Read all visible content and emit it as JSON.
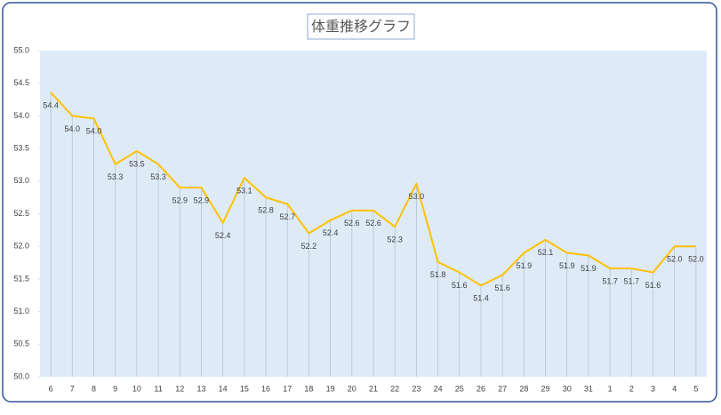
{
  "chart_data": {
    "type": "line",
    "title": "体重推移グラフ",
    "categories": [
      "6",
      "7",
      "8",
      "9",
      "10",
      "11",
      "12",
      "13",
      "14",
      "15",
      "16",
      "17",
      "18",
      "19",
      "20",
      "21",
      "22",
      "23",
      "24",
      "25",
      "26",
      "27",
      "28",
      "29",
      "30",
      "31",
      "1",
      "2",
      "3",
      "4",
      "5"
    ],
    "series": [
      {
        "color": "#ffc000",
        "values": [
          54.36,
          54.0,
          53.96,
          53.26,
          53.46,
          53.26,
          52.9,
          52.9,
          52.36,
          53.05,
          52.75,
          52.65,
          52.2,
          52.4,
          52.55,
          52.55,
          52.3,
          52.96,
          51.76,
          51.6,
          51.4,
          51.56,
          51.9,
          52.1,
          51.9,
          51.86,
          51.66,
          51.66,
          51.6,
          52.0,
          52.0
        ],
        "value_labels": [
          "54.4",
          "54.0",
          "54.0",
          "53.3",
          "53.5",
          "53.3",
          "52.9",
          "52.9",
          "52.4",
          "53.1",
          "52.8",
          "52.7",
          "52.2",
          "52.4",
          "52.6",
          "52.6",
          "52.3",
          "53.0",
          "51.8",
          "51.6",
          "51.4",
          "51.6",
          "51.9",
          "52.1",
          "51.9",
          "51.9",
          "51.7",
          "51.7",
          "51.6",
          "52.0",
          "52.0"
        ]
      }
    ],
    "ylim": [
      50,
      55
    ],
    "yticks": [
      {
        "value": 50,
        "label": "50.0"
      },
      50.5,
      {
        "value": 51,
        "label": "51.0"
      },
      51.5,
      {
        "value": 52,
        "label": "52.0"
      },
      52.5,
      {
        "value": 53,
        "label": "53.0"
      },
      53.5,
      {
        "value": 54,
        "label": "54.0"
      },
      54.5,
      {
        "value": 55,
        "label": "55.0"
      }
    ],
    "plot_background": "#deebf7",
    "drop_lines": true
  }
}
